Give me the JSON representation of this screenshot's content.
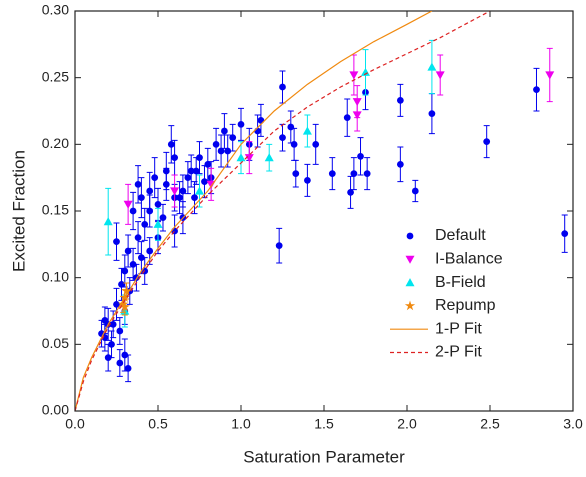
{
  "chart_data": {
    "type": "scatter",
    "xlabel": "Saturation Parameter",
    "ylabel": "Excited Fraction",
    "xlim": [
      0,
      3.0
    ],
    "ylim": [
      0,
      0.3
    ],
    "xticks": [
      {
        "value": 0,
        "label": "0.0"
      },
      {
        "value": 0.5,
        "label": "0.5"
      },
      {
        "value": 1.0,
        "label": "1.0"
      },
      {
        "value": 1.5,
        "label": "1.5"
      },
      {
        "value": 2.0,
        "label": "2.0"
      },
      {
        "value": 2.5,
        "label": "2.5"
      },
      {
        "value": 3.0,
        "label": "3.0"
      }
    ],
    "yticks": [
      {
        "value": 0,
        "label": "0.00"
      },
      {
        "value": 0.05,
        "label": "0.05"
      },
      {
        "value": 0.1,
        "label": "0.10"
      },
      {
        "value": 0.15,
        "label": "0.15"
      },
      {
        "value": 0.2,
        "label": "0.20"
      },
      {
        "value": 0.25,
        "label": "0.25"
      },
      {
        "value": 0.3,
        "label": "0.30"
      }
    ],
    "legend": "center-right",
    "series": [
      {
        "name": "Default",
        "color": "#0000ee",
        "marker": "circle",
        "x": [
          2.95,
          2.78,
          2.48,
          2.15,
          1.96,
          1.96,
          2.05,
          1.75,
          1.72,
          1.76,
          1.68,
          1.66,
          1.64,
          1.55,
          1.45,
          1.4,
          1.33,
          1.25,
          1.23,
          1.25,
          1.3,
          1.32,
          1.12,
          1.1,
          1.05,
          1.0,
          0.95,
          0.92,
          0.9,
          0.88,
          0.85,
          0.8,
          0.78,
          0.75,
          0.73,
          0.7,
          0.68,
          0.65,
          0.63,
          0.6,
          0.6,
          0.58,
          0.55,
          0.53,
          0.5,
          0.5,
          0.48,
          0.45,
          0.45,
          0.42,
          0.4,
          0.4,
          0.38,
          0.37,
          0.35,
          0.35,
          0.33,
          0.32,
          0.3,
          0.3,
          0.28,
          0.27,
          0.25,
          0.25,
          0.23,
          0.22,
          0.2,
          0.18,
          0.18,
          0.16,
          0.32,
          0.3,
          0.27,
          0.55,
          0.65,
          0.72,
          0.82,
          0.45,
          0.38,
          0.6,
          0.42,
          0.2
        ],
        "values": [
          0.133,
          0.241,
          0.202,
          0.223,
          0.233,
          0.185,
          0.165,
          0.239,
          0.191,
          0.178,
          0.178,
          0.164,
          0.22,
          0.178,
          0.2,
          0.173,
          0.178,
          0.243,
          0.124,
          0.205,
          0.213,
          0.2,
          0.218,
          0.21,
          0.2,
          0.215,
          0.205,
          0.195,
          0.21,
          0.195,
          0.2,
          0.185,
          0.172,
          0.19,
          0.18,
          0.18,
          0.175,
          0.165,
          0.16,
          0.19,
          0.16,
          0.2,
          0.17,
          0.145,
          0.155,
          0.13,
          0.175,
          0.15,
          0.12,
          0.14,
          0.16,
          0.115,
          0.13,
          0.1,
          0.15,
          0.11,
          0.09,
          0.12,
          0.105,
          0.075,
          0.095,
          0.06,
          0.08,
          0.127,
          0.065,
          0.05,
          0.065,
          0.068,
          0.055,
          0.058,
          0.032,
          0.042,
          0.036,
          0.18,
          0.145,
          0.16,
          0.175,
          0.165,
          0.17,
          0.135,
          0.105,
          0.04
        ],
        "errors": [
          0.014,
          0.016,
          0.012,
          0.015,
          0.012,
          0.013,
          0.008,
          0.013,
          0.014,
          0.012,
          0.012,
          0.012,
          0.014,
          0.012,
          0.015,
          0.012,
          0.01,
          0.012,
          0.013,
          0.01,
          0.012,
          0.012,
          0.012,
          0.012,
          0.012,
          0.012,
          0.01,
          0.012,
          0.013,
          0.012,
          0.012,
          0.012,
          0.012,
          0.012,
          0.01,
          0.012,
          0.012,
          0.012,
          0.012,
          0.013,
          0.01,
          0.014,
          0.012,
          0.01,
          0.012,
          0.012,
          0.015,
          0.012,
          0.01,
          0.012,
          0.015,
          0.012,
          0.012,
          0.01,
          0.014,
          0.012,
          0.01,
          0.012,
          0.012,
          0.01,
          0.012,
          0.01,
          0.012,
          0.014,
          0.01,
          0.01,
          0.012,
          0.01,
          0.01,
          0.01,
          0.01,
          0.012,
          0.01,
          0.014,
          0.012,
          0.012,
          0.012,
          0.014,
          0.014,
          0.012,
          0.01,
          0.01
        ]
      },
      {
        "name": "I-Balance",
        "color": "#ee00ee",
        "marker": "triangle-down",
        "x": [
          1.68,
          1.7,
          2.2,
          2.86,
          1.7,
          0.6,
          0.82,
          0.32,
          1.05
        ],
        "values": [
          0.252,
          0.232,
          0.252,
          0.252,
          0.222,
          0.165,
          0.17,
          0.155,
          0.19
        ],
        "errors": [
          0.015,
          0.012,
          0.015,
          0.02,
          0.012,
          0.012,
          0.012,
          0.015,
          0.012
        ]
      },
      {
        "name": "B-Field",
        "color": "#00e5ee",
        "marker": "triangle-up",
        "x": [
          0.2,
          2.15,
          1.75,
          1.4,
          1.0,
          1.17,
          0.75,
          0.5,
          0.3
        ],
        "values": [
          0.142,
          0.258,
          0.254,
          0.21,
          0.19,
          0.19,
          0.165,
          0.14,
          0.075
        ],
        "errors": [
          0.025,
          0.02,
          0.017,
          0.012,
          0.012,
          0.01,
          0.012,
          0.012,
          0.012
        ]
      },
      {
        "name": "Repump",
        "color": "#f08a10",
        "marker": "star",
        "x": [
          0.3,
          0.29,
          0.31,
          0.3
        ],
        "values": [
          0.085,
          0.08,
          0.09,
          0.078
        ],
        "errors": [
          0.006,
          0.006,
          0.006,
          0.006
        ]
      },
      {
        "name": "1-P Fit",
        "color": "#f08a10",
        "line_style": "solid",
        "x": [
          0,
          0.05,
          0.1,
          0.2,
          0.3,
          0.4,
          0.5,
          0.6,
          0.8,
          1.0,
          1.2,
          1.4,
          1.6,
          1.8,
          2.0,
          2.15
        ],
        "values": [
          0,
          0.025,
          0.04,
          0.065,
          0.085,
          0.105,
          0.122,
          0.138,
          0.165,
          0.2,
          0.225,
          0.245,
          0.262,
          0.277,
          0.29,
          0.3
        ]
      },
      {
        "name": "2-P Fit",
        "color": "#dd2222",
        "line_style": "dashed",
        "x": [
          0,
          0.05,
          0.1,
          0.2,
          0.3,
          0.4,
          0.5,
          0.6,
          0.8,
          1.0,
          1.2,
          1.4,
          1.6,
          1.8,
          2.0,
          2.2,
          2.5
        ],
        "values": [
          0,
          0.022,
          0.038,
          0.063,
          0.083,
          0.102,
          0.12,
          0.135,
          0.162,
          0.186,
          0.21,
          0.228,
          0.243,
          0.256,
          0.268,
          0.28,
          0.3
        ]
      }
    ]
  }
}
